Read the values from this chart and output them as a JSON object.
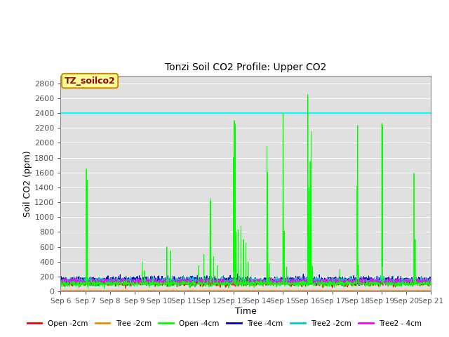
{
  "title": "Tonzi Soil CO2 Profile: Upper CO2",
  "xlabel": "Time",
  "ylabel": "Soil CO2 (ppm)",
  "ylim": [
    0,
    2900
  ],
  "yticks": [
    0,
    200,
    400,
    600,
    800,
    1000,
    1200,
    1400,
    1600,
    1800,
    2000,
    2200,
    2400,
    2600,
    2800
  ],
  "hline_value": 2400,
  "hline_color": "#00FFFF",
  "bg_color": "#E0E0E0",
  "annotation_text": "TZ_soilco2",
  "annotation_bg": "#FFFF99",
  "annotation_border": "#CC8800",
  "annotation_text_color": "#990000",
  "legend_entries": [
    {
      "label": "Open -2cm",
      "color": "#FF0000"
    },
    {
      "label": "Tree -2cm",
      "color": "#FF8800"
    },
    {
      "label": "Open -4cm",
      "color": "#00FF00"
    },
    {
      "label": "Tree -4cm",
      "color": "#0000CC"
    },
    {
      "label": "Tree2 -2cm",
      "color": "#00CCCC"
    },
    {
      "label": "Tree2 - 4cm",
      "color": "#FF00FF"
    }
  ],
  "n_points": 1500,
  "x_start": 6.0,
  "x_end": 21.0,
  "xtick_positions": [
    6,
    7,
    8,
    9,
    10,
    11,
    12,
    13,
    14,
    15,
    16,
    17,
    18,
    19,
    20,
    21
  ],
  "xtick_labels": [
    "Sep 6",
    "Sep 7",
    "Sep 8",
    "Sep 9",
    "Sep 10",
    "Sep 11",
    "Sep 12",
    "Sep 13",
    "Sep 14",
    "Sep 15",
    "Sep 16",
    "Sep 17",
    "Sep 18",
    "Sep 19",
    "Sep 20",
    "Sep 21"
  ]
}
